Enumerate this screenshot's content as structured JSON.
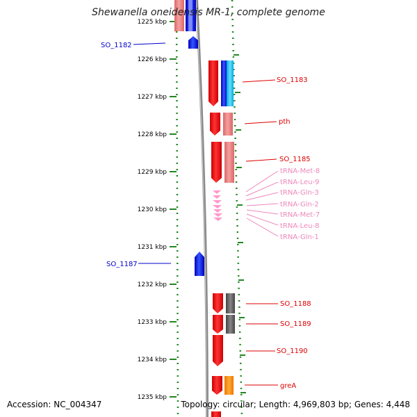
{
  "title": "Shewanella oneidensis MR-1, complete genome",
  "accession": "Accession: NC_004347",
  "topology": "Topology: circular; Length: 4,969,803 bp; Genes: 4,448",
  "colors": {
    "gene_forward": "#ff0000",
    "gene_forward_light": "#ee7777",
    "gene_reverse": "#0000ff",
    "trna": "#ff99cc",
    "label_forward": "#dd0000",
    "label_reverse": "#0000cc",
    "label_trna": "#ee88bb",
    "backbone": "#8a8a8a",
    "ruler": "#228822",
    "category_cyan": "#33ccff",
    "category_gray": "#555555",
    "category_orange": "#ff8800",
    "category_salmon": "#ee8888"
  },
  "kbp_ticks": [
    "1225 kbp",
    "1226 kbp",
    "1227 kbp",
    "1228 kbp",
    "1229 kbp",
    "1230 kbp",
    "1231 kbp",
    "1232 kbp",
    "1233 kbp",
    "1234 kbp",
    "1235 kbp"
  ],
  "gene_labels": [
    {
      "text": "SO_1182",
      "kind": "reverse"
    },
    {
      "text": "SO_1183",
      "kind": "forward"
    },
    {
      "text": "pth",
      "kind": "forward"
    },
    {
      "text": "SO_1185",
      "kind": "forward"
    },
    {
      "text": "tRNA-Met-8",
      "kind": "trna"
    },
    {
      "text": "tRNA-Leu-9",
      "kind": "trna"
    },
    {
      "text": "tRNA-Gln-3",
      "kind": "trna"
    },
    {
      "text": "tRNA-Gln-2",
      "kind": "trna"
    },
    {
      "text": "tRNA-Met-7",
      "kind": "trna"
    },
    {
      "text": "tRNA-Leu-8",
      "kind": "trna"
    },
    {
      "text": "tRNA-Gln-1",
      "kind": "trna"
    },
    {
      "text": "SO_1187",
      "kind": "reverse"
    },
    {
      "text": "SO_1188",
      "kind": "forward"
    },
    {
      "text": "SO_1189",
      "kind": "forward"
    },
    {
      "text": "SO_1190",
      "kind": "forward"
    },
    {
      "text": "greA",
      "kind": "forward"
    }
  ]
}
